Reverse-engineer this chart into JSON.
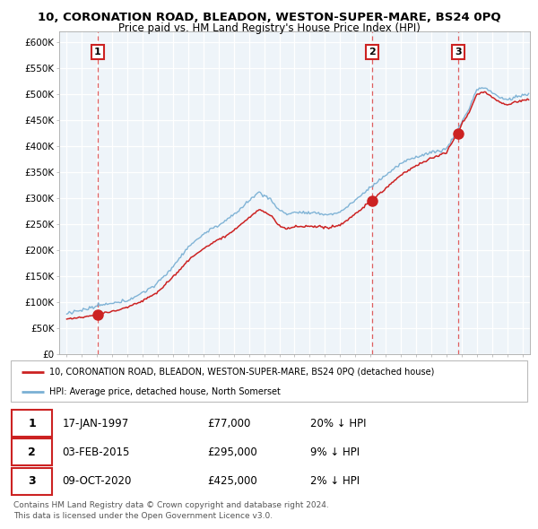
{
  "title": "10, CORONATION ROAD, BLEADON, WESTON-SUPER-MARE, BS24 0PQ",
  "subtitle": "Price paid vs. HM Land Registry's House Price Index (HPI)",
  "sales": [
    {
      "date_num": 1997.04,
      "price": 77000,
      "label": "1"
    },
    {
      "date_num": 2015.09,
      "price": 295000,
      "label": "2"
    },
    {
      "date_num": 2020.77,
      "price": 425000,
      "label": "3"
    }
  ],
  "sale_dates_text": [
    "17-JAN-1997",
    "03-FEB-2015",
    "09-OCT-2020"
  ],
  "sale_prices_text": [
    "£77,000",
    "£295,000",
    "£425,000"
  ],
  "sale_hpi_text": [
    "20% ↓ HPI",
    "9% ↓ HPI",
    "2% ↓ HPI"
  ],
  "legend_line1": "10, CORONATION ROAD, BLEADON, WESTON-SUPER-MARE, BS24 0PQ (detached house)",
  "legend_line2": "HPI: Average price, detached house, North Somerset",
  "footer": "Contains HM Land Registry data © Crown copyright and database right 2024.\nThis data is licensed under the Open Government Licence v3.0.",
  "ylim": [
    0,
    620000
  ],
  "ytick_vals": [
    0,
    50000,
    100000,
    150000,
    200000,
    250000,
    300000,
    350000,
    400000,
    450000,
    500000,
    550000,
    600000
  ],
  "ytick_labels": [
    "£0",
    "£50K",
    "£100K",
    "£150K",
    "£200K",
    "£250K",
    "£300K",
    "£350K",
    "£400K",
    "£450K",
    "£500K",
    "£550K",
    "£600K"
  ],
  "xlim_lo": 1994.5,
  "xlim_hi": 2025.5,
  "red_color": "#cc2222",
  "blue_color": "#7ab0d4",
  "dash_color": "#dd4444",
  "chart_bg": "#eef4f9",
  "grid_color": "#ffffff",
  "border_color": "#bbbbbb"
}
